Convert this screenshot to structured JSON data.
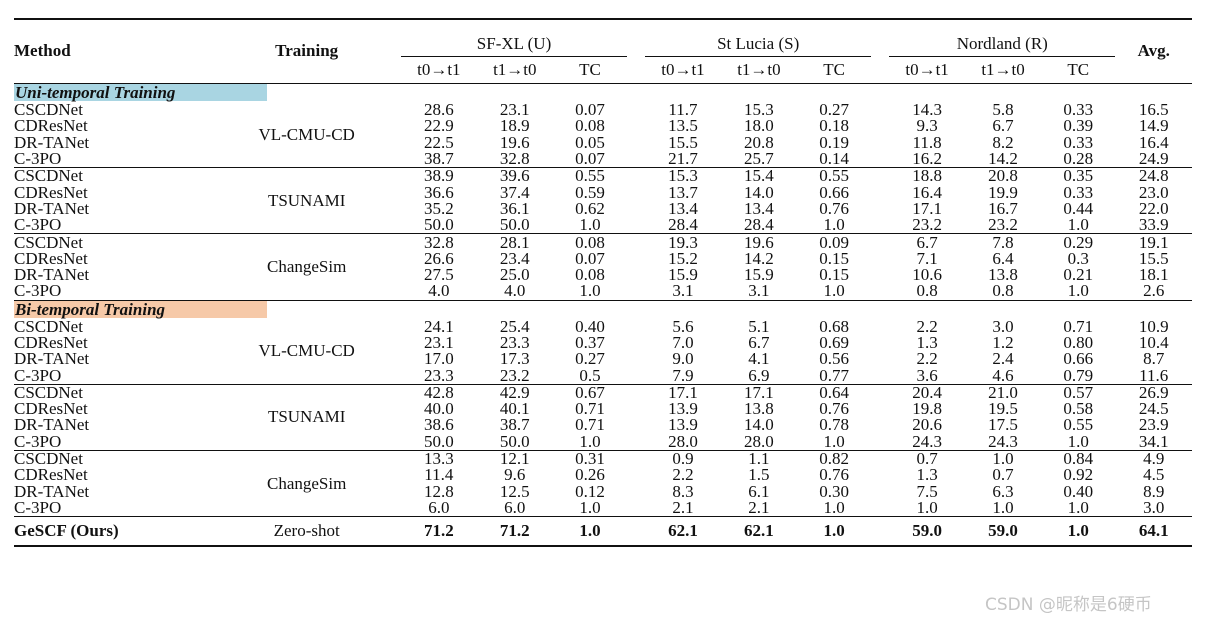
{
  "header": {
    "method": "Method",
    "training": "Training",
    "avg": "Avg.",
    "datasets": [
      {
        "name": "SF-XL (U)"
      },
      {
        "name": "St Lucia (S)"
      },
      {
        "name": "Nordland (R)"
      }
    ],
    "subcols": [
      "t0→t1",
      "t1→t0",
      "TC"
    ]
  },
  "sections": [
    {
      "label": "Uni-temporal Training",
      "color": "#a9d5e2",
      "groups": [
        {
          "training": "VL-CMU-CD",
          "rows": [
            {
              "method": "CSCDNet",
              "values": [
                "28.6",
                "23.1",
                "0.07",
                "11.7",
                "15.3",
                "0.27",
                "14.3",
                "5.8",
                "0.33",
                "16.5"
              ]
            },
            {
              "method": "CDResNet",
              "values": [
                "22.9",
                "18.9",
                "0.08",
                "13.5",
                "18.0",
                "0.18",
                "9.3",
                "6.7",
                "0.39",
                "14.9"
              ]
            },
            {
              "method": "DR-TANet",
              "values": [
                "22.5",
                "19.6",
                "0.05",
                "15.5",
                "20.8",
                "0.19",
                "11.8",
                "8.2",
                "0.33",
                "16.4"
              ]
            },
            {
              "method": "C-3PO",
              "values": [
                "38.7",
                "32.8",
                "0.07",
                "21.7",
                "25.7",
                "0.14",
                "16.2",
                "14.2",
                "0.28",
                "24.9"
              ]
            }
          ]
        },
        {
          "training": "TSUNAMI",
          "rows": [
            {
              "method": "CSCDNet",
              "values": [
                "38.9",
                "39.6",
                "0.55",
                "15.3",
                "15.4",
                "0.55",
                "18.8",
                "20.8",
                "0.35",
                "24.8"
              ]
            },
            {
              "method": "CDResNet",
              "values": [
                "36.6",
                "37.4",
                "0.59",
                "13.7",
                "14.0",
                "0.66",
                "16.4",
                "19.9",
                "0.33",
                "23.0"
              ]
            },
            {
              "method": "DR-TANet",
              "values": [
                "35.2",
                "36.1",
                "0.62",
                "13.4",
                "13.4",
                "0.76",
                "17.1",
                "16.7",
                "0.44",
                "22.0"
              ]
            },
            {
              "method": "C-3PO",
              "values": [
                "50.0",
                "50.0",
                "1.0",
                "28.4",
                "28.4",
                "1.0",
                "23.2",
                "23.2",
                "1.0",
                "33.9"
              ]
            }
          ]
        },
        {
          "training": "ChangeSim",
          "rows": [
            {
              "method": "CSCDNet",
              "values": [
                "32.8",
                "28.1",
                "0.08",
                "19.3",
                "19.6",
                "0.09",
                "6.7",
                "7.8",
                "0.29",
                "19.1"
              ]
            },
            {
              "method": "CDResNet",
              "values": [
                "26.6",
                "23.4",
                "0.07",
                "15.2",
                "14.2",
                "0.15",
                "7.1",
                "6.4",
                "0.3",
                "15.5"
              ]
            },
            {
              "method": "DR-TANet",
              "values": [
                "27.5",
                "25.0",
                "0.08",
                "15.9",
                "15.9",
                "0.15",
                "10.6",
                "13.8",
                "0.21",
                "18.1"
              ]
            },
            {
              "method": "C-3PO",
              "values": [
                "4.0",
                "4.0",
                "1.0",
                "3.1",
                "3.1",
                "1.0",
                "0.8",
                "0.8",
                "1.0",
                "2.6"
              ]
            }
          ]
        }
      ]
    },
    {
      "label": "Bi-temporal Training",
      "color": "#f6c9a8",
      "groups": [
        {
          "training": "VL-CMU-CD",
          "rows": [
            {
              "method": "CSCDNet",
              "values": [
                "24.1",
                "25.4",
                "0.40",
                "5.6",
                "5.1",
                "0.68",
                "2.2",
                "3.0",
                "0.71",
                "10.9"
              ]
            },
            {
              "method": "CDResNet",
              "values": [
                "23.1",
                "23.3",
                "0.37",
                "7.0",
                "6.7",
                "0.69",
                "1.3",
                "1.2",
                "0.80",
                "10.4"
              ]
            },
            {
              "method": "DR-TANet",
              "values": [
                "17.0",
                "17.3",
                "0.27",
                "9.0",
                "4.1",
                "0.56",
                "2.2",
                "2.4",
                "0.66",
                "8.7"
              ]
            },
            {
              "method": "C-3PO",
              "values": [
                "23.3",
                "23.2",
                "0.5",
                "7.9",
                "6.9",
                "0.77",
                "3.6",
                "4.6",
                "0.79",
                "11.6"
              ]
            }
          ]
        },
        {
          "training": "TSUNAMI",
          "rows": [
            {
              "method": "CSCDNet",
              "values": [
                "42.8",
                "42.9",
                "0.67",
                "17.1",
                "17.1",
                "0.64",
                "20.4",
                "21.0",
                "0.57",
                "26.9"
              ]
            },
            {
              "method": "CDResNet",
              "values": [
                "40.0",
                "40.1",
                "0.71",
                "13.9",
                "13.8",
                "0.76",
                "19.8",
                "19.5",
                "0.58",
                "24.5"
              ]
            },
            {
              "method": "DR-TANet",
              "values": [
                "38.6",
                "38.7",
                "0.71",
                "13.9",
                "14.0",
                "0.78",
                "20.6",
                "17.5",
                "0.55",
                "23.9"
              ]
            },
            {
              "method": "C-3PO",
              "values": [
                "50.0",
                "50.0",
                "1.0",
                "28.0",
                "28.0",
                "1.0",
                "24.3",
                "24.3",
                "1.0",
                "34.1"
              ]
            }
          ]
        },
        {
          "training": "ChangeSim",
          "rows": [
            {
              "method": "CSCDNet",
              "values": [
                "13.3",
                "12.1",
                "0.31",
                "0.9",
                "1.1",
                "0.82",
                "0.7",
                "1.0",
                "0.84",
                "4.9"
              ]
            },
            {
              "method": "CDResNet",
              "values": [
                "11.4",
                "9.6",
                "0.26",
                "2.2",
                "1.5",
                "0.76",
                "1.3",
                "0.7",
                "0.92",
                "4.5"
              ]
            },
            {
              "method": "DR-TANet",
              "values": [
                "12.8",
                "12.5",
                "0.12",
                "8.3",
                "6.1",
                "0.30",
                "7.5",
                "6.3",
                "0.40",
                "8.9"
              ]
            },
            {
              "method": "C-3PO",
              "values": [
                "6.0",
                "6.0",
                "1.0",
                "2.1",
                "2.1",
                "1.0",
                "1.0",
                "1.0",
                "1.0",
                "3.0"
              ]
            }
          ]
        }
      ]
    }
  ],
  "final": {
    "method": "GeSCF (Ours)",
    "training": "Zero-shot",
    "values": [
      "71.2",
      "71.2",
      "1.0",
      "62.1",
      "62.1",
      "1.0",
      "59.0",
      "59.0",
      "1.0",
      "64.1"
    ]
  },
  "watermark": "CSDN @昵称是6硬币"
}
